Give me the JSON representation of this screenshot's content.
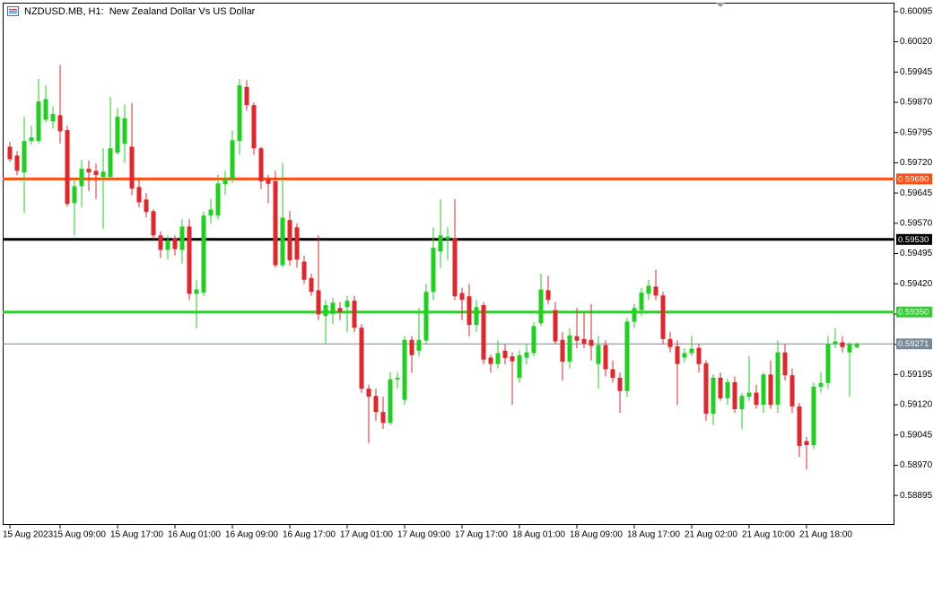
{
  "chart_data": {
    "type": "candlestick",
    "title": "NZDUSD.MB, H1:  New Zealand Dollar Vs US Dollar",
    "up_color": "#1fd11f",
    "down_color": "#e3262b",
    "ylim": [
      0.58822,
      0.60117
    ],
    "yticks": [
      0.60095,
      {
        "value": 0.6002,
        "label": "0.60020"
      },
      0.59945,
      {
        "value": 0.5987,
        "label": "0.59870"
      },
      0.59795,
      {
        "value": 0.5972,
        "label": "0.59720"
      },
      0.59645,
      {
        "value": 0.5957,
        "label": "0.59570"
      },
      0.59495,
      {
        "value": 0.5942,
        "label": "0.59420"
      },
      0.59345,
      {
        "value": 0.5927,
        "label": "0.59270"
      },
      0.59195,
      {
        "value": 0.5912,
        "label": "0.59120"
      },
      0.59045,
      {
        "value": 0.5897,
        "label": "0.58970"
      },
      0.58895
    ],
    "hlines": [
      {
        "value": 0.5968,
        "label": "0.59680",
        "color": "#ff4f12"
      },
      {
        "value": 0.5953,
        "label": "0.59530",
        "color": "#000000"
      },
      {
        "value": 0.5935,
        "label": "0.59350",
        "color": "#32cd32"
      },
      {
        "value": 0.59271,
        "label": "0.59271",
        "color": "#778899"
      }
    ],
    "categories": [
      "15 Aug 2023",
      null,
      null,
      null,
      null,
      null,
      null,
      "15 Aug 09:00",
      null,
      null,
      null,
      null,
      null,
      null,
      null,
      "15 Aug 17:00",
      null,
      null,
      null,
      null,
      null,
      null,
      null,
      "16 Aug 01:00",
      null,
      null,
      null,
      null,
      null,
      null,
      null,
      "16 Aug 09:00",
      null,
      null,
      null,
      null,
      null,
      null,
      null,
      "16 Aug 17:00",
      null,
      null,
      null,
      null,
      null,
      null,
      null,
      "17 Aug 01:00",
      null,
      null,
      null,
      null,
      null,
      null,
      null,
      "17 Aug 09:00",
      null,
      null,
      null,
      null,
      null,
      null,
      null,
      "17 Aug 17:00",
      null,
      null,
      null,
      null,
      null,
      null,
      null,
      "18 Aug 01:00",
      null,
      null,
      null,
      null,
      null,
      null,
      null,
      "18 Aug 09:00",
      null,
      null,
      null,
      null,
      null,
      null,
      null,
      "18 Aug 17:00",
      null,
      null,
      null,
      null,
      null,
      null,
      null,
      "21 Aug 02:00",
      null,
      null,
      null,
      null,
      null,
      null,
      null,
      "21 Aug 10:00",
      null,
      null,
      null,
      null,
      null,
      null,
      null,
      "21 Aug 18:00",
      null,
      null,
      null,
      null,
      null,
      null,
      null
    ],
    "ohlc": [
      [
        0.5976,
        0.59772,
        0.59723,
        0.59729
      ],
      [
        0.59738,
        0.59749,
        0.59689,
        0.597
      ],
      [
        0.59696,
        0.59834,
        0.59596,
        0.59774
      ],
      [
        0.59774,
        0.59812,
        0.59765,
        0.59783
      ],
      [
        0.59774,
        0.59928,
        0.59767,
        0.59872
      ],
      [
        0.59827,
        0.59912,
        0.5982,
        0.59878
      ],
      [
        0.59823,
        0.5986,
        0.59805,
        0.59841
      ],
      [
        0.59838,
        0.59963,
        0.59767,
        0.59798
      ],
      [
        0.59801,
        0.59812,
        0.59611,
        0.59618
      ],
      [
        0.5962,
        0.5968,
        0.5954,
        0.59662
      ],
      [
        0.59662,
        0.59728,
        0.5961,
        0.59705
      ],
      [
        0.59705,
        0.59725,
        0.5965,
        0.59696
      ],
      [
        0.597,
        0.59718,
        0.5963,
        0.5969
      ],
      [
        0.59685,
        0.59756,
        0.59556,
        0.59698
      ],
      [
        0.59685,
        0.59883,
        0.5968,
        0.59756
      ],
      [
        0.59745,
        0.59856,
        0.5974,
        0.59834
      ],
      [
        0.59767,
        0.59865,
        0.5972,
        0.5983
      ],
      [
        0.5976,
        0.59868,
        0.5964,
        0.59656
      ],
      [
        0.5966,
        0.5968,
        0.5961,
        0.59622
      ],
      [
        0.59629,
        0.59645,
        0.59585,
        0.59598
      ],
      [
        0.596,
        0.59605,
        0.5953,
        0.5954
      ],
      [
        0.5954,
        0.5955,
        0.59484,
        0.59504
      ],
      [
        0.59504,
        0.5954,
        0.5948,
        0.59527
      ],
      [
        0.59533,
        0.5954,
        0.5949,
        0.59506
      ],
      [
        0.59504,
        0.5958,
        0.5947,
        0.59562
      ],
      [
        0.59562,
        0.5958,
        0.5938,
        0.59395
      ],
      [
        0.59395,
        0.5943,
        0.5931,
        0.59406
      ],
      [
        0.59398,
        0.596,
        0.5939,
        0.59589
      ],
      [
        0.59589,
        0.5963,
        0.5957,
        0.59604
      ],
      [
        0.59589,
        0.5969,
        0.5958,
        0.59669
      ],
      [
        0.59667,
        0.597,
        0.5964,
        0.5968
      ],
      [
        0.5968,
        0.598,
        0.5967,
        0.59776
      ],
      [
        0.59774,
        0.59928,
        0.5974,
        0.59912
      ],
      [
        0.59908,
        0.59925,
        0.5985,
        0.59863
      ],
      [
        0.59863,
        0.5987,
        0.5974,
        0.59756
      ],
      [
        0.59756,
        0.5976,
        0.59655,
        0.59674
      ],
      [
        0.5968,
        0.5969,
        0.5962,
        0.59668
      ],
      [
        0.59674,
        0.597,
        0.5946,
        0.59466
      ],
      [
        0.59466,
        0.59719,
        0.5946,
        0.59584
      ],
      [
        0.59578,
        0.596,
        0.59465,
        0.59478
      ],
      [
        0.5956,
        0.5957,
        0.5946,
        0.5948
      ],
      [
        0.59475,
        0.5949,
        0.5942,
        0.5943
      ],
      [
        0.59434,
        0.59445,
        0.5939,
        0.594
      ],
      [
        0.59404,
        0.5954,
        0.5933,
        0.59344
      ],
      [
        0.5934,
        0.5938,
        0.5927,
        0.59367
      ],
      [
        0.59345,
        0.59385,
        0.5932,
        0.59373
      ],
      [
        0.5936,
        0.59375,
        0.5933,
        0.5935
      ],
      [
        0.59362,
        0.5939,
        0.593,
        0.59378
      ],
      [
        0.59378,
        0.5939,
        0.593,
        0.59311
      ],
      [
        0.59311,
        0.5932,
        0.5915,
        0.5916
      ],
      [
        0.5916,
        0.5917,
        0.59025,
        0.5914
      ],
      [
        0.59142,
        0.5916,
        0.5908,
        0.59102
      ],
      [
        0.59102,
        0.5914,
        0.5906,
        0.59075
      ],
      [
        0.59075,
        0.592,
        0.5907,
        0.59183
      ],
      [
        0.59183,
        0.592,
        0.5916,
        0.59187
      ],
      [
        0.59132,
        0.5929,
        0.5912,
        0.59281
      ],
      [
        0.59281,
        0.5929,
        0.592,
        0.59243
      ],
      [
        0.59254,
        0.5936,
        0.5924,
        0.59281
      ],
      [
        0.59279,
        0.5942,
        0.5927,
        0.594
      ],
      [
        0.594,
        0.5956,
        0.5938,
        0.59509
      ],
      [
        0.595,
        0.5963,
        0.5946,
        0.5954
      ],
      [
        0.5953,
        0.5956,
        0.5948,
        0.59537
      ],
      [
        0.59533,
        0.5963,
        0.5938,
        0.59389
      ],
      [
        0.59397,
        0.5941,
        0.5933,
        0.5938
      ],
      [
        0.59389,
        0.5942,
        0.5929,
        0.59318
      ],
      [
        0.59318,
        0.5938,
        0.593,
        0.59362
      ],
      [
        0.59367,
        0.59375,
        0.5922,
        0.59232
      ],
      [
        0.59237,
        0.59245,
        0.592,
        0.59221
      ],
      [
        0.59221,
        0.5928,
        0.5921,
        0.59248
      ],
      [
        0.59254,
        0.5927,
        0.5922,
        0.59236
      ],
      [
        0.5924,
        0.5925,
        0.5912,
        0.59228
      ],
      [
        0.59187,
        0.59255,
        0.59175,
        0.59243
      ],
      [
        0.59237,
        0.5927,
        0.5922,
        0.5925
      ],
      [
        0.59248,
        0.59325,
        0.5924,
        0.59315
      ],
      [
        0.59322,
        0.59445,
        0.59315,
        0.59406
      ],
      [
        0.59404,
        0.5944,
        0.5937,
        0.5938
      ],
      [
        0.59355,
        0.59375,
        0.5927,
        0.59277
      ],
      [
        0.59281,
        0.593,
        0.5918,
        0.59227
      ],
      [
        0.59227,
        0.5931,
        0.5921,
        0.59292
      ],
      [
        0.5929,
        0.5936,
        0.5926,
        0.59279
      ],
      [
        0.59283,
        0.5935,
        0.5926,
        0.59272
      ],
      [
        0.59281,
        0.5937,
        0.5923,
        0.59266
      ],
      [
        0.59221,
        0.5929,
        0.5916,
        0.59268
      ],
      [
        0.59268,
        0.5928,
        0.5919,
        0.59208
      ],
      [
        0.59208,
        0.5923,
        0.59175,
        0.59187
      ],
      [
        0.59187,
        0.592,
        0.591,
        0.59154
      ],
      [
        0.59154,
        0.59335,
        0.5914,
        0.59326
      ],
      [
        0.59326,
        0.5937,
        0.5931,
        0.5936
      ],
      [
        0.59355,
        0.5941,
        0.5934,
        0.59398
      ],
      [
        0.59395,
        0.5943,
        0.5938,
        0.59415
      ],
      [
        0.59413,
        0.59455,
        0.5938,
        0.59391
      ],
      [
        0.59391,
        0.594,
        0.5927,
        0.59283
      ],
      [
        0.59283,
        0.593,
        0.5925,
        0.59263
      ],
      [
        0.59265,
        0.5928,
        0.5912,
        0.59221
      ],
      [
        0.59237,
        0.5926,
        0.59225,
        0.59248
      ],
      [
        0.59248,
        0.5929,
        0.5924,
        0.59259
      ],
      [
        0.59261,
        0.5927,
        0.592,
        0.59221
      ],
      [
        0.59223,
        0.5923,
        0.5908,
        0.59098
      ],
      [
        0.59098,
        0.59195,
        0.5907,
        0.59187
      ],
      [
        0.59187,
        0.592,
        0.5913,
        0.59136
      ],
      [
        0.59136,
        0.59185,
        0.5912,
        0.59176
      ],
      [
        0.59176,
        0.5919,
        0.591,
        0.59109
      ],
      [
        0.59109,
        0.5915,
        0.5906,
        0.59142
      ],
      [
        0.5914,
        0.5924,
        0.5913,
        0.5915
      ],
      [
        0.5915,
        0.5917,
        0.5911,
        0.5912
      ],
      [
        0.5912,
        0.592,
        0.591,
        0.59195
      ],
      [
        0.59195,
        0.5923,
        0.5911,
        0.5912
      ],
      [
        0.5912,
        0.5928,
        0.591,
        0.5925
      ],
      [
        0.5925,
        0.5927,
        0.5918,
        0.59193
      ],
      [
        0.59193,
        0.5921,
        0.591,
        0.59116
      ],
      [
        0.59116,
        0.59125,
        0.5899,
        0.59018
      ],
      [
        0.5903,
        0.5904,
        0.5896,
        0.5902
      ],
      [
        0.5902,
        0.59175,
        0.5901,
        0.59165
      ],
      [
        0.59165,
        0.592,
        0.5915,
        0.59174
      ],
      [
        0.59174,
        0.5929,
        0.5916,
        0.5927
      ],
      [
        0.5927,
        0.5931,
        0.5926,
        0.59277
      ],
      [
        0.59275,
        0.5929,
        0.5925,
        0.59263
      ],
      [
        0.5925,
        0.59275,
        0.5914,
        0.5927
      ],
      [
        0.59263,
        0.59275,
        0.5926,
        0.59271
      ]
    ]
  }
}
